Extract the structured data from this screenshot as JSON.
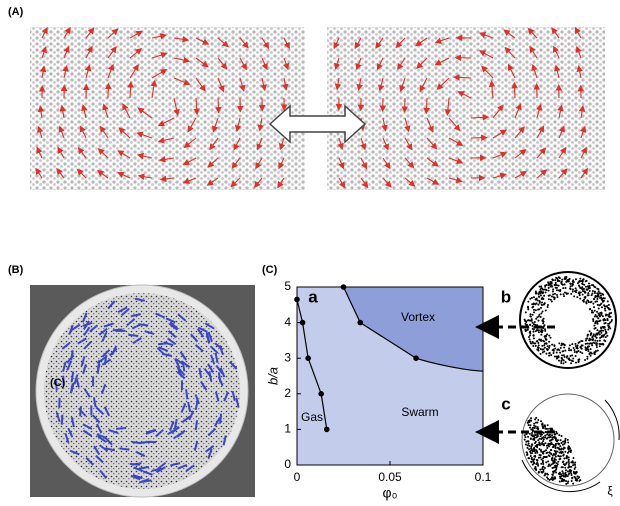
{
  "panels": {
    "A": {
      "label": "(A)"
    },
    "B": {
      "label": "(B)",
      "inset_label": "(C)"
    },
    "C": {
      "label": "(C)"
    }
  },
  "chart_data": {
    "type": "line",
    "xlabel": "φ₀",
    "ylabel": "b/a",
    "xlim": [
      0,
      0.1
    ],
    "ylim": [
      0,
      5
    ],
    "xticks": [
      0,
      0.05,
      0.1
    ],
    "yticks": [
      0,
      1,
      2,
      3,
      4,
      5
    ],
    "colors": {
      "swarm": "#c4ccec",
      "vortex": "#8e9ed8",
      "line": "#000000"
    },
    "series": [
      {
        "x": [
          0,
          0.003,
          0.006,
          0.013,
          0.016
        ],
        "values": [
          4.65,
          4.0,
          3.0,
          2.0,
          1.0
        ]
      },
      {
        "x": [
          0.025,
          0.034,
          0.064
        ],
        "values": [
          5.0,
          4.0,
          3.0
        ]
      }
    ],
    "annotations": {
      "a": "a",
      "vortex": "Vortex",
      "swarm": "Swarm",
      "gas": "Gas",
      "b": "b",
      "c": "c",
      "xi": "ξ"
    }
  }
}
